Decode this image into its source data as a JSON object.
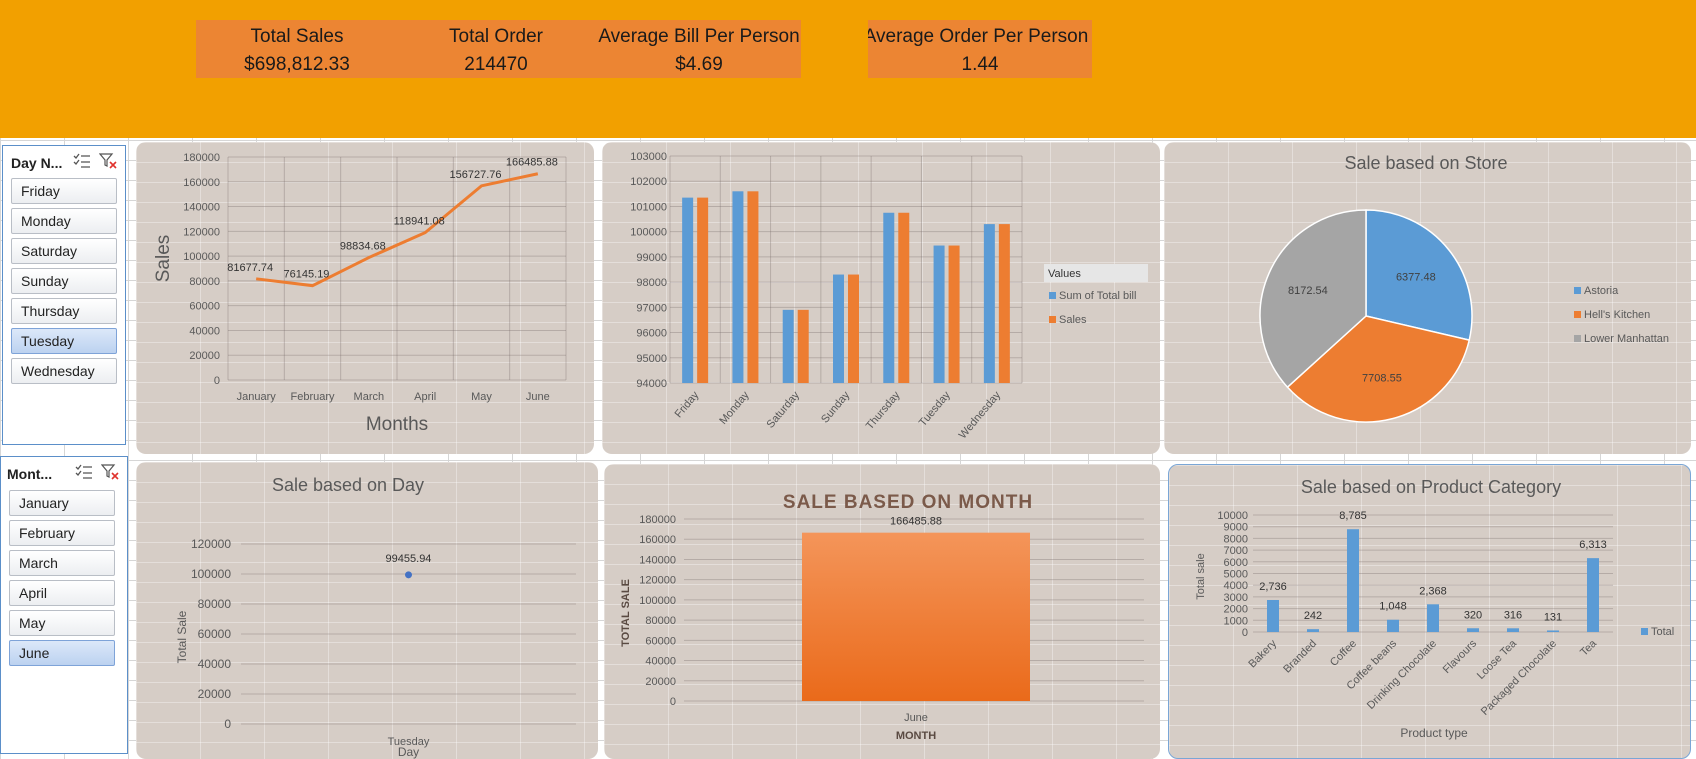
{
  "kpis": [
    {
      "label": "Total Sales",
      "value": "$698,812.33"
    },
    {
      "label": "Total Order",
      "value": "214470"
    },
    {
      "label": "Average Bill Per Person",
      "value": "$4.69"
    },
    {
      "label": "Average Order Per Person",
      "value": "1.44"
    }
  ],
  "slicers": {
    "day": {
      "title": "Day N...",
      "items": [
        {
          "label": "Friday",
          "selected": false
        },
        {
          "label": "Monday",
          "selected": false
        },
        {
          "label": "Saturday",
          "selected": false
        },
        {
          "label": "Sunday",
          "selected": false
        },
        {
          "label": "Thursday",
          "selected": false
        },
        {
          "label": "Tuesday",
          "selected": true
        },
        {
          "label": "Wednesday",
          "selected": false
        }
      ]
    },
    "month": {
      "title": "Mont...",
      "items": [
        {
          "label": "January",
          "selected": false
        },
        {
          "label": "February",
          "selected": false
        },
        {
          "label": "March",
          "selected": false
        },
        {
          "label": "April",
          "selected": false
        },
        {
          "label": "May",
          "selected": false
        },
        {
          "label": "June",
          "selected": true
        }
      ]
    },
    "icons": [
      "multi-select-icon",
      "clear-filter-icon"
    ]
  },
  "colors": {
    "header": "#f2a000",
    "kpi_box": "#ec8533",
    "panel": "#d6cdc6",
    "blue": "#5b9bd5",
    "orange": "#ed7d31",
    "gray": "#a5a5a5"
  },
  "chart_data": [
    {
      "id": "sales-by-month-line",
      "type": "line",
      "title": "",
      "xlabel": "Months",
      "ylabel": "Sales",
      "categories": [
        "January",
        "February",
        "March",
        "April",
        "May",
        "June"
      ],
      "values": [
        81677.74,
        76145.19,
        98834.68,
        118941.08,
        156727.76,
        166485.88
      ],
      "data_labels": [
        "81677.74",
        "76145.19",
        "98834.68",
        "118941.08",
        "156727.76",
        "166485.88"
      ],
      "ylim": [
        0,
        180000
      ],
      "yticks": [
        0,
        20000,
        40000,
        60000,
        80000,
        100000,
        120000,
        140000,
        160000,
        180000
      ],
      "color": "#ed7d31",
      "grid": true
    },
    {
      "id": "day-bar",
      "type": "bar",
      "title": "",
      "categories": [
        "Friday",
        "Monday",
        "Saturday",
        "Sunday",
        "Thursday",
        "Tuesday",
        "Wednesday"
      ],
      "legend_title": "Values",
      "legend_placement": "right",
      "series": [
        {
          "name": "Sum of Total bill",
          "color": "#5b9bd5",
          "values": [
            101350,
            101600,
            96900,
            98300,
            100750,
            99450,
            100300
          ]
        },
        {
          "name": "Sales",
          "color": "#ed7d31",
          "values": [
            101350,
            101600,
            96900,
            98300,
            100750,
            99450,
            100300
          ]
        }
      ],
      "ylim": [
        94000,
        103000
      ],
      "yticks": [
        94000,
        95000,
        96000,
        97000,
        98000,
        99000,
        100000,
        101000,
        102000,
        103000
      ],
      "grid": true
    },
    {
      "id": "store-pie",
      "type": "pie",
      "title": "Sale based on Store",
      "legend_placement": "right",
      "slices": [
        {
          "name": "Astoria",
          "value": 6377.48,
          "label": "6377.48",
          "color": "#5b9bd5"
        },
        {
          "name": "Hell's Kitchen",
          "value": 7708.55,
          "label": "7708.55",
          "color": "#ed7d31"
        },
        {
          "name": "Lower Manhattan",
          "value": 8172.54,
          "label": "8172.54",
          "color": "#a5a5a5"
        }
      ]
    },
    {
      "id": "day-scatter",
      "type": "scatter",
      "title": "Sale based on Day",
      "xlabel": "Day",
      "ylabel": "Total Sale",
      "categories": [
        "Tuesday"
      ],
      "values": [
        99455.94
      ],
      "data_labels": [
        "99455.94"
      ],
      "ylim": [
        0,
        120000
      ],
      "yticks": [
        0,
        20000,
        40000,
        60000,
        80000,
        100000,
        120000
      ],
      "color": "#4472c4",
      "grid": true
    },
    {
      "id": "month-bar",
      "type": "bar",
      "title": "SALE BASED ON MONTH",
      "xlabel": "MONTH",
      "ylabel": "TOTAL SALE",
      "categories": [
        "June"
      ],
      "values": [
        166485.88
      ],
      "data_labels": [
        "166485.88"
      ],
      "ylim": [
        0,
        180000
      ],
      "yticks": [
        0,
        20000,
        40000,
        60000,
        80000,
        100000,
        120000,
        140000,
        160000,
        180000
      ],
      "color": "#ed7d31",
      "grid": true
    },
    {
      "id": "category-bar",
      "type": "bar",
      "title": "Sale based on Product Category",
      "xlabel": "Product type",
      "ylabel": "Total sale",
      "legend_placement": "right",
      "series_name": "Total",
      "categories": [
        "Bakery",
        "Branded",
        "Coffee",
        "Coffee beans",
        "Drinking Chocolate",
        "Flavours",
        "Loose Tea",
        "Packaged Chocolate",
        "Tea"
      ],
      "values": [
        2736,
        242,
        8785,
        1048,
        2368,
        320,
        316,
        131,
        6313
      ],
      "data_labels": [
        "2,736",
        "242",
        "8,785",
        "1,048",
        "2,368",
        "320",
        "316",
        "131",
        "6,313"
      ],
      "ylim": [
        0,
        10000
      ],
      "yticks": [
        0,
        1000,
        2000,
        3000,
        4000,
        5000,
        6000,
        7000,
        8000,
        9000,
        10000
      ],
      "color": "#5b9bd5",
      "grid": true
    }
  ]
}
